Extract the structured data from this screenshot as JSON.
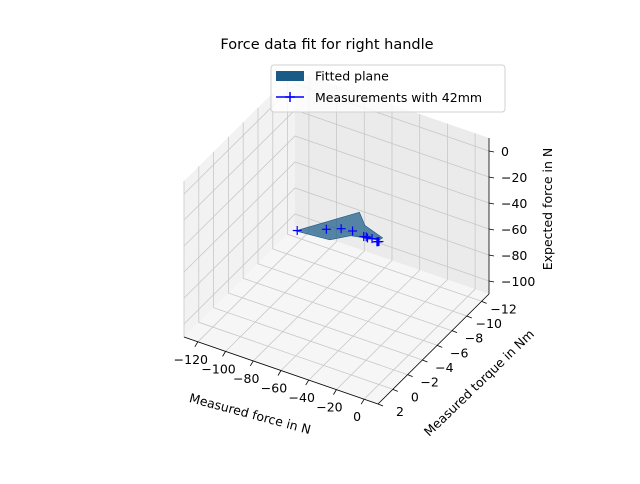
{
  "chart_data": {
    "type": "scatter",
    "subtype": "3d-surface-with-points",
    "title": "Force data fit for right handle",
    "xlabel": "Measured force in N",
    "ylabel": "Measured torque in Nm",
    "zlabel": "Expected force in N",
    "xlim": [
      -130,
      10
    ],
    "ylim": [
      -13,
      2
    ],
    "zlim": [
      -110,
      10
    ],
    "xticks": [
      -120,
      -100,
      -80,
      -60,
      -40,
      -20,
      0
    ],
    "yticks": [
      -12,
      -10,
      -8,
      -6,
      -4,
      -2,
      0,
      2
    ],
    "zticks": [
      -100,
      -80,
      -60,
      -40,
      -20,
      0
    ],
    "grid": true,
    "legend_position": "top-right",
    "surface": {
      "name": "Fitted plane",
      "color": "#1a5a86"
    },
    "scatter": {
      "name": "Measurements with 42mm",
      "color": "#0000ff",
      "marker": "+",
      "points": [
        {
          "x": -122,
          "y": -11.8,
          "z": -103
        },
        {
          "x": -86,
          "y": -9.0,
          "z": -73
        },
        {
          "x": -70,
          "y": -8.0,
          "z": -61
        },
        {
          "x": -50,
          "y": -5.8,
          "z": -43
        },
        {
          "x": -27,
          "y": -3.0,
          "z": -23
        },
        {
          "x": -22,
          "y": -2.4,
          "z": -18
        },
        {
          "x": -20,
          "y": -2.2,
          "z": -17
        },
        {
          "x": -13,
          "y": -1.5,
          "z": -11
        },
        {
          "x": -2,
          "y": -0.1,
          "z": -1.5
        },
        {
          "x": -1,
          "y": -0.05,
          "z": -0.8
        },
        {
          "x": 0,
          "y": 0,
          "z": 0
        }
      ]
    }
  }
}
